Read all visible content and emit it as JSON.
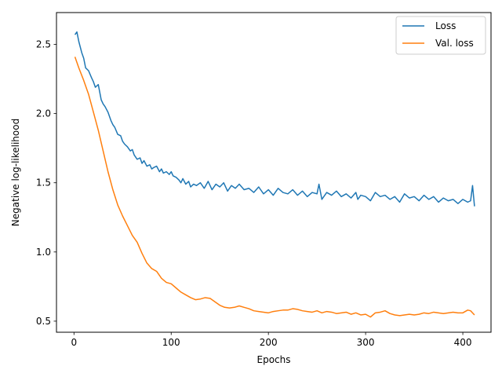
{
  "chart_data": {
    "type": "line",
    "title": "",
    "xlabel": "Epochs",
    "ylabel": "Negative log-likelihood",
    "xlim": [
      -18,
      429
    ],
    "ylim": [
      0.42,
      2.73
    ],
    "x_ticks": [
      0,
      100,
      200,
      300,
      400
    ],
    "x_tick_labels": [
      "0",
      "100",
      "200",
      "300",
      "400"
    ],
    "y_ticks": [
      0.5,
      1.0,
      1.5,
      2.0,
      2.5
    ],
    "y_tick_labels": [
      "0.5",
      "1.0",
      "1.5",
      "2.0",
      "2.5"
    ],
    "grid": false,
    "legend_position": "top-right",
    "series": [
      {
        "name": "Loss",
        "color": "#1f77b4",
        "x": [
          1,
          3,
          5,
          8,
          10,
          12,
          15,
          18,
          20,
          22,
          25,
          28,
          30,
          32,
          35,
          38,
          40,
          42,
          45,
          48,
          50,
          52,
          55,
          58,
          60,
          62,
          65,
          68,
          70,
          72,
          75,
          78,
          80,
          82,
          85,
          88,
          90,
          92,
          95,
          98,
          100,
          102,
          105,
          108,
          110,
          112,
          115,
          118,
          120,
          123,
          126,
          130,
          134,
          138,
          142,
          146,
          150,
          154,
          158,
          162,
          166,
          170,
          175,
          180,
          185,
          190,
          195,
          200,
          205,
          210,
          215,
          220,
          225,
          230,
          235,
          240,
          245,
          250,
          252,
          255,
          260,
          265,
          270,
          275,
          280,
          285,
          290,
          292,
          295,
          300,
          305,
          310,
          315,
          320,
          325,
          330,
          335,
          340,
          345,
          350,
          355,
          360,
          365,
          370,
          375,
          380,
          385,
          390,
          395,
          400,
          405,
          408,
          410,
          412
        ],
        "values": [
          2.57,
          2.59,
          2.52,
          2.44,
          2.4,
          2.33,
          2.31,
          2.26,
          2.23,
          2.19,
          2.21,
          2.1,
          2.07,
          2.05,
          2.01,
          1.95,
          1.92,
          1.9,
          1.85,
          1.84,
          1.8,
          1.78,
          1.76,
          1.73,
          1.74,
          1.7,
          1.67,
          1.68,
          1.64,
          1.66,
          1.62,
          1.63,
          1.6,
          1.61,
          1.62,
          1.58,
          1.6,
          1.57,
          1.58,
          1.56,
          1.58,
          1.55,
          1.54,
          1.52,
          1.5,
          1.53,
          1.49,
          1.51,
          1.47,
          1.49,
          1.48,
          1.5,
          1.46,
          1.51,
          1.45,
          1.49,
          1.47,
          1.5,
          1.44,
          1.48,
          1.46,
          1.49,
          1.45,
          1.46,
          1.43,
          1.47,
          1.42,
          1.45,
          1.41,
          1.46,
          1.43,
          1.42,
          1.45,
          1.41,
          1.44,
          1.4,
          1.43,
          1.42,
          1.49,
          1.38,
          1.43,
          1.41,
          1.44,
          1.4,
          1.42,
          1.39,
          1.43,
          1.38,
          1.41,
          1.4,
          1.37,
          1.43,
          1.4,
          1.41,
          1.38,
          1.4,
          1.36,
          1.42,
          1.39,
          1.4,
          1.37,
          1.41,
          1.38,
          1.4,
          1.36,
          1.39,
          1.37,
          1.38,
          1.35,
          1.38,
          1.36,
          1.37,
          1.48,
          1.33
        ]
      },
      {
        "name": "Val. loss",
        "color": "#ff7f0e",
        "x": [
          1,
          5,
          10,
          15,
          20,
          25,
          30,
          35,
          40,
          45,
          50,
          55,
          60,
          65,
          70,
          75,
          80,
          85,
          90,
          95,
          100,
          105,
          110,
          115,
          120,
          125,
          130,
          135,
          140,
          145,
          150,
          155,
          160,
          165,
          170,
          175,
          180,
          185,
          190,
          195,
          200,
          205,
          210,
          215,
          220,
          225,
          230,
          235,
          240,
          245,
          250,
          255,
          260,
          265,
          270,
          275,
          280,
          285,
          290,
          295,
          300,
          305,
          310,
          315,
          320,
          325,
          330,
          335,
          340,
          345,
          350,
          355,
          360,
          365,
          370,
          375,
          380,
          385,
          390,
          395,
          400,
          405,
          408,
          410,
          412
        ],
        "values": [
          2.41,
          2.33,
          2.24,
          2.14,
          2.01,
          1.88,
          1.73,
          1.58,
          1.45,
          1.34,
          1.26,
          1.19,
          1.12,
          1.07,
          0.99,
          0.92,
          0.88,
          0.86,
          0.81,
          0.78,
          0.77,
          0.74,
          0.71,
          0.69,
          0.67,
          0.655,
          0.66,
          0.67,
          0.665,
          0.64,
          0.615,
          0.6,
          0.595,
          0.6,
          0.61,
          0.6,
          0.59,
          0.575,
          0.57,
          0.565,
          0.56,
          0.57,
          0.575,
          0.58,
          0.58,
          0.59,
          0.585,
          0.575,
          0.57,
          0.565,
          0.575,
          0.56,
          0.57,
          0.565,
          0.555,
          0.56,
          0.565,
          0.55,
          0.56,
          0.545,
          0.55,
          0.53,
          0.56,
          0.565,
          0.575,
          0.555,
          0.545,
          0.54,
          0.545,
          0.55,
          0.545,
          0.55,
          0.56,
          0.555,
          0.565,
          0.56,
          0.555,
          0.56,
          0.565,
          0.56,
          0.56,
          0.58,
          0.575,
          0.56,
          0.545
        ]
      }
    ]
  }
}
